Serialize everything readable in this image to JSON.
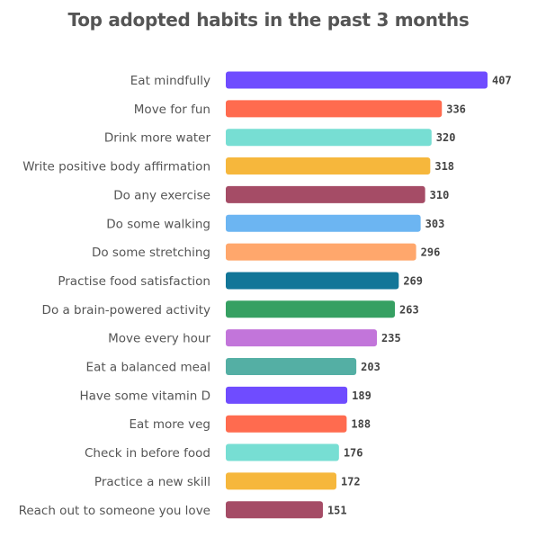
{
  "chart_data": {
    "type": "bar",
    "orientation": "horizontal",
    "title": "Top adopted habits in the past 3 months",
    "xlabel": "",
    "ylabel": "",
    "xlim": [
      0,
      407
    ],
    "grid": false,
    "data_labels": true,
    "categories": [
      "Eat mindfully",
      "Move for fun",
      "Drink more water",
      "Write positive body affirmation",
      "Do any exercise",
      "Do some walking",
      "Do some stretching",
      "Practise food satisfaction",
      "Do a brain-powered activity",
      "Move every hour",
      "Eat a balanced meal",
      "Have some vitamin D",
      "Eat more veg",
      "Check in before food",
      "Practice a new skill",
      "Reach out to someone you love"
    ],
    "values": [
      407,
      336,
      320,
      318,
      310,
      303,
      296,
      269,
      263,
      235,
      203,
      189,
      188,
      176,
      172,
      151
    ],
    "colors": [
      "#6F4CFF",
      "#FF6B4F",
      "#77DED3",
      "#F6B73C",
      "#A54C66",
      "#6CB5F2",
      "#FFA76C",
      "#127698",
      "#36A062",
      "#C275DA",
      "#54AFA4",
      "#6F4CFF",
      "#FF6B4F",
      "#77DED3",
      "#F6B73C",
      "#A54C66"
    ]
  }
}
